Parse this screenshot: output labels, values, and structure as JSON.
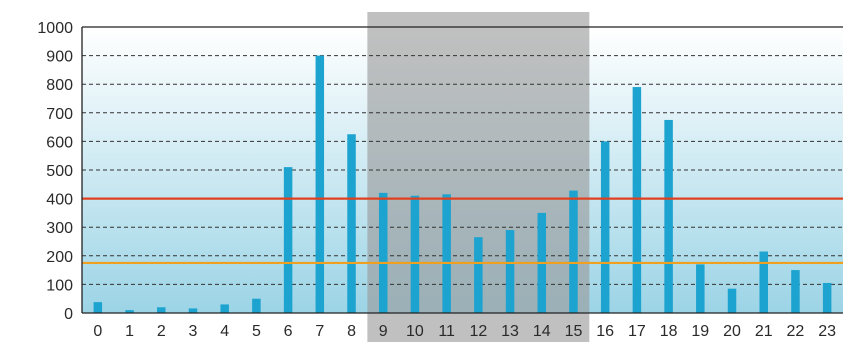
{
  "chart_data": {
    "type": "bar",
    "title": "",
    "xlabel": "",
    "ylabel": "",
    "categories": [
      "0",
      "1",
      "2",
      "3",
      "4",
      "5",
      "6",
      "7",
      "8",
      "9",
      "10",
      "11",
      "12",
      "13",
      "14",
      "15",
      "16",
      "17",
      "18",
      "19",
      "20",
      "21",
      "22",
      "23"
    ],
    "values": [
      38,
      10,
      20,
      16,
      30,
      50,
      510,
      900,
      625,
      420,
      410,
      415,
      265,
      290,
      350,
      428,
      600,
      790,
      675,
      170,
      85,
      215,
      150,
      105
    ],
    "ylim": [
      0,
      1000
    ],
    "yticks": [
      0,
      100,
      200,
      300,
      400,
      500,
      600,
      700,
      800,
      900,
      1000
    ],
    "grid": "horizontal dashed",
    "reference_lines": [
      {
        "value": 400,
        "color": "#e0401f"
      },
      {
        "value": 175,
        "color": "#f0a020"
      }
    ],
    "shaded_range": {
      "from": "9",
      "to": "15",
      "color": "#9a9a9a"
    },
    "bar_color": "#1ca3cf",
    "background_gradient": [
      "#ffffff",
      "#9cd4e6"
    ]
  }
}
